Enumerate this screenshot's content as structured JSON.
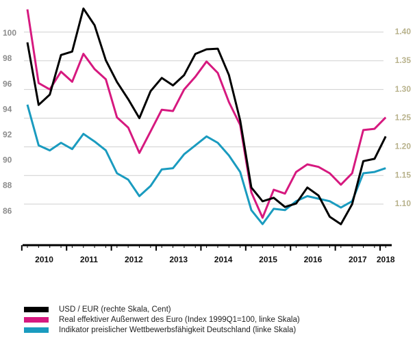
{
  "chart_data": {
    "type": "line",
    "x_labels": [
      "2010",
      "2011",
      "2012",
      "2013",
      "2014",
      "2015",
      "2016",
      "2017",
      "2018"
    ],
    "ylim": [
      83.5,
      102.1
    ],
    "yticks": [
      86,
      88,
      90,
      92,
      94,
      96,
      98,
      100
    ],
    "y2lim": [
      1.032,
      1.444
    ],
    "y2ticks": [
      {
        "value": 1.1,
        "label": "1.10"
      },
      {
        "value": 1.15,
        "label": "1.15"
      },
      {
        "value": 1.2,
        "label": "1.20"
      },
      {
        "value": 1.25,
        "label": "1.25"
      },
      {
        "value": 1.3,
        "label": "1.30"
      },
      {
        "value": 1.35,
        "label": "1.35"
      },
      {
        "value": 1.4,
        "label": "1.40"
      }
    ],
    "grid": true,
    "legend": "bottom",
    "series": [
      {
        "name": "USD / EUR (rechte Skala, Cent)",
        "color": "#000000",
        "axis": "y2",
        "values": [
          1.382,
          1.273,
          1.291,
          1.36,
          1.366,
          1.441,
          1.412,
          1.351,
          1.313,
          1.283,
          1.25,
          1.297,
          1.32,
          1.307,
          1.325,
          1.362,
          1.37,
          1.371,
          1.325,
          1.246,
          1.129,
          1.105,
          1.111,
          1.095,
          1.101,
          1.129,
          1.115,
          1.078,
          1.065,
          1.1,
          1.175,
          1.179,
          1.218
        ]
      },
      {
        "name": "Real effektiver Außenwert des Euro (Index 1999Q1=100, linke Skala)",
        "color": "#d6197f",
        "axis": "y",
        "values": [
          101.9,
          96.1,
          95.6,
          97.0,
          96.2,
          98.4,
          97.2,
          96.4,
          93.4,
          92.6,
          90.6,
          92.3,
          94.0,
          93.9,
          95.6,
          96.6,
          97.8,
          96.9,
          94.6,
          92.8,
          87.5,
          85.5,
          87.7,
          87.4,
          89.1,
          89.7,
          89.5,
          89.0,
          88.1,
          89.0,
          92.4,
          92.5,
          93.4
        ]
      },
      {
        "name": "Indikator preislicher Wettbewerbsfähigkeit Deutschland (linke Skala)",
        "color": "#1a9bbf",
        "axis": "y",
        "values": [
          94.4,
          91.2,
          90.8,
          91.4,
          90.9,
          92.1,
          91.5,
          90.8,
          89.0,
          88.5,
          87.2,
          88.0,
          89.3,
          89.4,
          90.5,
          91.2,
          91.9,
          91.4,
          90.4,
          89.1,
          86.1,
          85.0,
          86.2,
          86.1,
          86.8,
          87.2,
          87.0,
          86.8,
          86.3,
          86.8,
          89.0,
          89.1,
          89.4
        ]
      }
    ]
  }
}
